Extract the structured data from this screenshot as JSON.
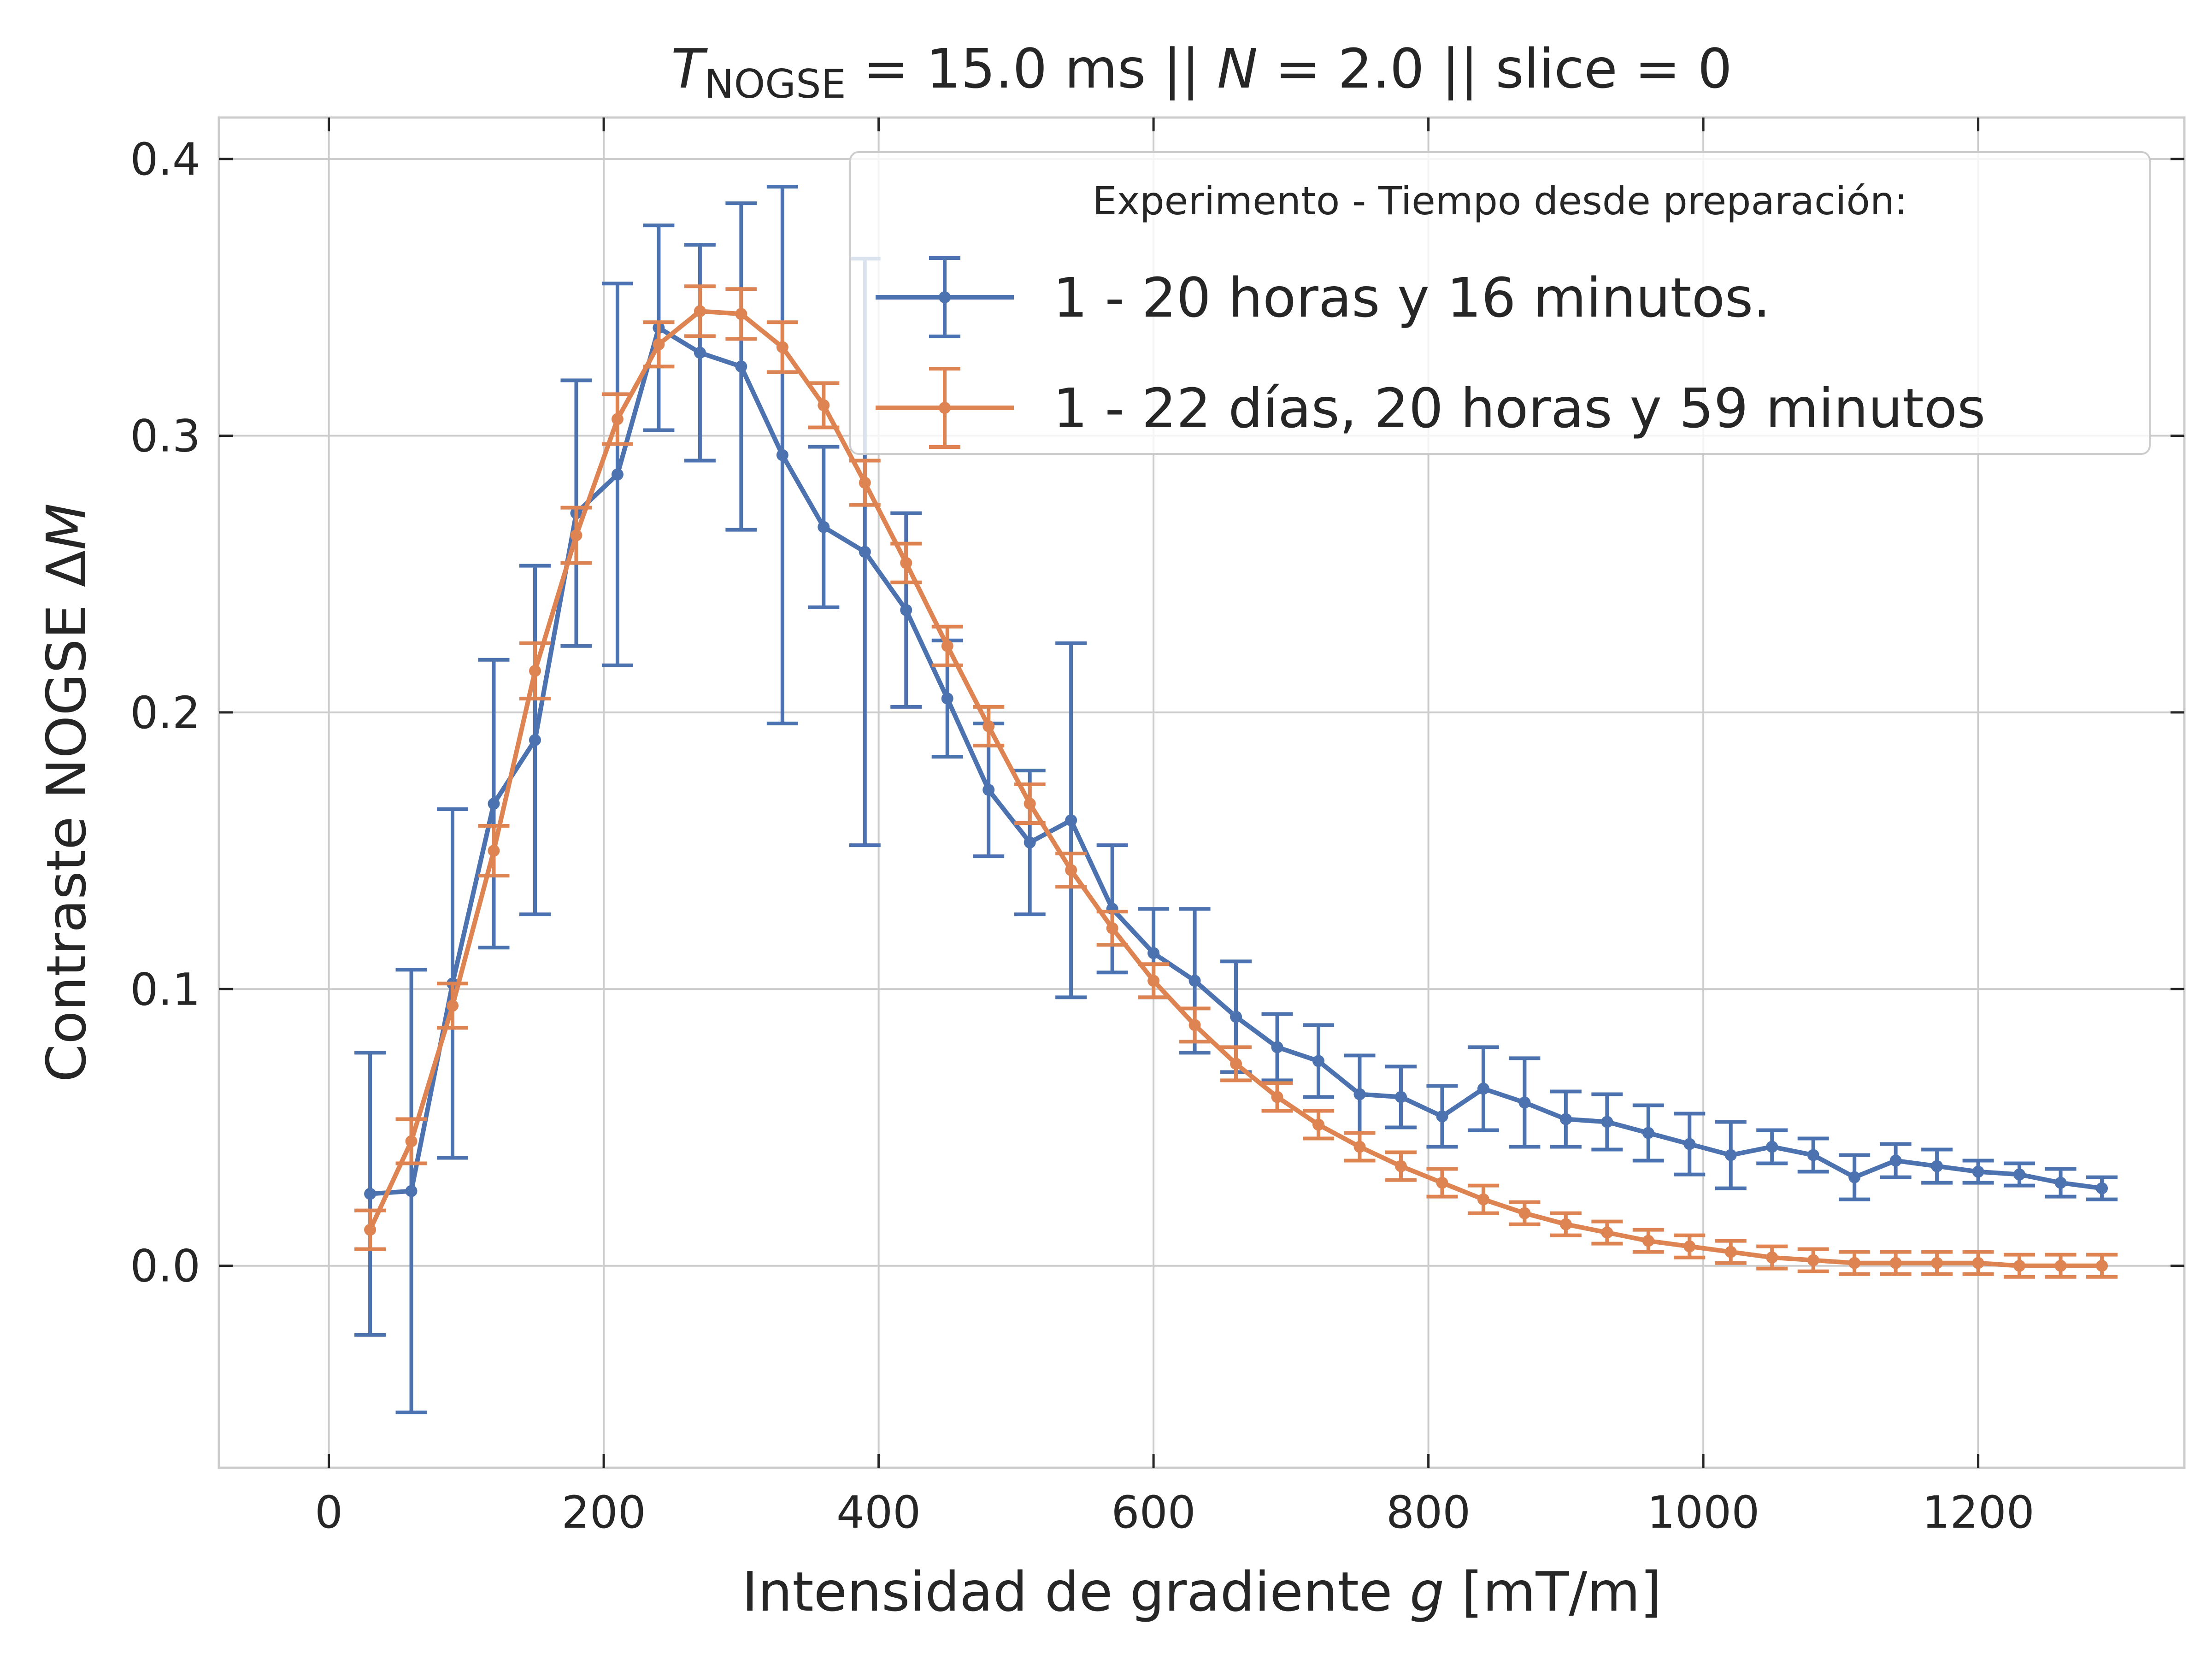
{
  "chart_data": {
    "type": "line",
    "title_parts": {
      "t_symbol": "T",
      "t_subscript": "NOGSE",
      "t_rest": " = 15.0 ms  ||  ",
      "n_symbol": "N",
      "n_rest": " = 2.0 || slice = 0"
    },
    "xlabel_parts": {
      "prefix": "Intensidad de gradiente ",
      "var": "g",
      "suffix": " [mT/m]"
    },
    "ylabel_parts": {
      "prefix": "Contraste NOGSE Δ",
      "var": "M"
    },
    "xlim": [
      -80,
      1350
    ],
    "ylim": [
      -0.073,
      0.415
    ],
    "xticks": [
      0,
      200,
      400,
      600,
      800,
      1000,
      1200
    ],
    "yticks": [
      0.0,
      0.1,
      0.2,
      0.3,
      0.4
    ],
    "xtick_labels": [
      "0",
      "200",
      "400",
      "600",
      "800",
      "1000",
      "1200"
    ],
    "ytick_labels": [
      "0.0",
      "0.1",
      "0.2",
      "0.3",
      "0.4"
    ],
    "grid": true,
    "legend": {
      "title": "Experimento - Tiempo desde preparación:",
      "position": "top-right"
    },
    "x": [
      30,
      60,
      90,
      120,
      150,
      180,
      210,
      240,
      270,
      300,
      330,
      360,
      390,
      420,
      450,
      480,
      510,
      540,
      570,
      600,
      630,
      660,
      690,
      720,
      750,
      780,
      810,
      840,
      870,
      900,
      930,
      960,
      990,
      1020,
      1050,
      1080,
      1110,
      1140,
      1170,
      1200,
      1230,
      1260,
      1290
    ],
    "series": [
      {
        "name": "1 - 20 horas y 16 minutos.",
        "color": "#4c72b0",
        "values": [
          0.026,
          0.027,
          0.102,
          0.167,
          0.19,
          0.272,
          0.286,
          0.339,
          0.33,
          0.325,
          0.293,
          0.267,
          0.258,
          0.237,
          0.205,
          0.172,
          0.153,
          0.161,
          0.129,
          0.113,
          0.103,
          0.09,
          0.079,
          0.074,
          0.062,
          0.061,
          0.054,
          0.064,
          0.059,
          0.053,
          0.052,
          0.048,
          0.044,
          0.04,
          0.043,
          0.04,
          0.032,
          0.038,
          0.036,
          0.034,
          0.033,
          0.03,
          0.028
        ],
        "errors": [
          0.051,
          0.08,
          0.063,
          0.052,
          0.063,
          0.048,
          0.069,
          0.037,
          0.039,
          0.059,
          0.097,
          0.029,
          0.106,
          0.035,
          0.021,
          0.024,
          0.026,
          0.064,
          0.023,
          0.016,
          0.026,
          0.02,
          0.012,
          0.013,
          0.014,
          0.011,
          0.011,
          0.015,
          0.016,
          0.01,
          0.01,
          0.01,
          0.011,
          0.012,
          0.006,
          0.006,
          0.008,
          0.006,
          0.006,
          0.004,
          0.004,
          0.005,
          0.004
        ]
      },
      {
        "name": "1 - 22 días, 20 horas y 59 minutos",
        "color": "#dd8452",
        "values": [
          0.013,
          0.045,
          0.094,
          0.15,
          0.215,
          0.264,
          0.306,
          0.333,
          0.345,
          0.344,
          0.332,
          0.311,
          0.283,
          0.254,
          0.224,
          0.195,
          0.167,
          0.143,
          0.122,
          0.103,
          0.087,
          0.073,
          0.061,
          0.051,
          0.043,
          0.036,
          0.03,
          0.024,
          0.019,
          0.015,
          0.012,
          0.009,
          0.007,
          0.005,
          0.003,
          0.002,
          0.001,
          0.001,
          0.001,
          0.001,
          0.0,
          0.0,
          0.0
        ],
        "errors": [
          0.007,
          0.008,
          0.008,
          0.009,
          0.01,
          0.01,
          0.009,
          0.008,
          0.009,
          0.009,
          0.009,
          0.008,
          0.008,
          0.007,
          0.007,
          0.007,
          0.007,
          0.006,
          0.006,
          0.006,
          0.006,
          0.006,
          0.005,
          0.005,
          0.005,
          0.005,
          0.005,
          0.005,
          0.004,
          0.004,
          0.004,
          0.004,
          0.004,
          0.004,
          0.004,
          0.004,
          0.004,
          0.004,
          0.004,
          0.004,
          0.004,
          0.004,
          0.004
        ]
      }
    ]
  }
}
